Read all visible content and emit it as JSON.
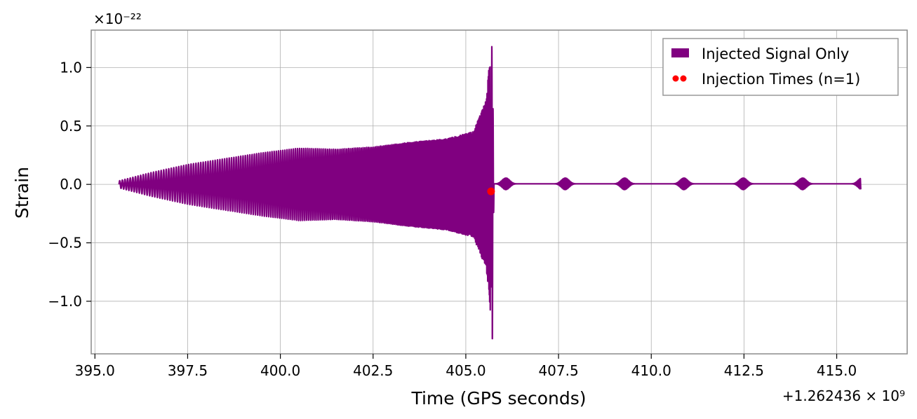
{
  "chart_data": {
    "type": "line",
    "title": "",
    "xlabel": "Time (GPS seconds)",
    "ylabel": "Strain",
    "x_offset_label": "+1.262436 × 10⁹",
    "y_scale_label": "×10⁻²²",
    "xlim": [
      394.9,
      416.9
    ],
    "ylim": [
      -1.45,
      1.32
    ],
    "xticks": [
      395.0,
      397.5,
      400.0,
      402.5,
      405.0,
      407.5,
      410.0,
      412.5,
      415.0
    ],
    "xtick_labels": [
      "395.0",
      "397.5",
      "400.0",
      "402.5",
      "405.0",
      "407.5",
      "410.0",
      "412.5",
      "415.0"
    ],
    "yticks": [
      1.0,
      0.5,
      0.0,
      -0.5,
      -1.0
    ],
    "ytick_labels": [
      "1.0",
      "0.5",
      "0.0",
      "−0.5",
      "−1.0"
    ],
    "grid": true,
    "legend_position": "top-right",
    "series": [
      {
        "name": "Injected Signal Only",
        "kind": "waveform",
        "color": "#800080",
        "x_start": 395.65,
        "x_end": 415.65,
        "merger_time": 405.68,
        "envelope": [
          {
            "x": 395.65,
            "y": 0.03
          },
          {
            "x": 396.5,
            "y": 0.1
          },
          {
            "x": 397.5,
            "y": 0.17
          },
          {
            "x": 398.5,
            "y": 0.22
          },
          {
            "x": 399.5,
            "y": 0.27
          },
          {
            "x": 400.5,
            "y": 0.31
          },
          {
            "x": 401.5,
            "y": 0.3
          },
          {
            "x": 402.5,
            "y": 0.32
          },
          {
            "x": 403.5,
            "y": 0.36
          },
          {
            "x": 404.5,
            "y": 0.39
          },
          {
            "x": 405.2,
            "y": 0.45
          },
          {
            "x": 405.55,
            "y": 0.72
          },
          {
            "x": 405.68,
            "y": 1.2
          },
          {
            "x": 405.8,
            "y": 0.05
          },
          {
            "x": 406.2,
            "y": 0.02
          },
          {
            "x": 415.65,
            "y": 0.02
          }
        ],
        "peak_max": 1.2,
        "peak_min": -1.32,
        "post_merger_wiggle_period": 0.8,
        "post_merger_wiggle_amplitude": 0.05
      }
    ],
    "markers": [
      {
        "name": "Injection Times (n=1)",
        "color": "#ff0000",
        "x": 405.68,
        "y": -0.06
      }
    ],
    "legend": [
      {
        "label": "Injected Signal Only",
        "kind": "patch",
        "color": "#800080"
      },
      {
        "label": "Injection Times (n=1)",
        "kind": "points",
        "color": "#ff0000"
      }
    ]
  }
}
